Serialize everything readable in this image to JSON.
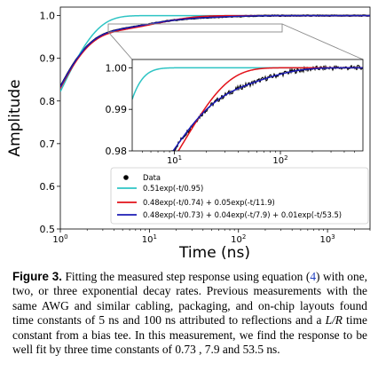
{
  "chart_data": {
    "type": "line",
    "xlabel": "Time (ns)",
    "ylabel": "Amplitude",
    "x_scale": "log",
    "y_scale": "linear",
    "xlim": [
      1,
      3000
    ],
    "ylim": [
      0.5,
      1.02
    ],
    "x_ticks": [
      "10^0",
      "10^1",
      "10^2",
      "10^3"
    ],
    "y_ticks": [
      "0.5",
      "0.6",
      "0.7",
      "0.8",
      "0.9",
      "1.0"
    ],
    "grid": false,
    "legend_position": "bottom-right",
    "series": [
      {
        "name": "Data",
        "kind": "points",
        "color": "#000000"
      },
      {
        "name": "0.51 exp(-t/0.95)",
        "kind": "line",
        "color": "#2ec4c4",
        "amplitudes": [
          0.51
        ],
        "taus": [
          0.95
        ]
      },
      {
        "name": "0.48 exp(-t/0.74) + 0.05 exp(-t/11.9)",
        "kind": "line",
        "color": "#e3121a",
        "amplitudes": [
          0.48,
          0.05
        ],
        "taus": [
          0.74,
          11.9
        ]
      },
      {
        "name": "0.48 exp(-t/0.73) + 0.04 exp(-t/7.9) + 0.01 exp(-t/53.5)",
        "kind": "line",
        "color": "#1b1bb5",
        "amplitudes": [
          0.48,
          0.04,
          0.01
        ],
        "taus": [
          0.73,
          7.9,
          53.5
        ]
      }
    ],
    "inset": {
      "xlim": [
        4,
        600
      ],
      "ylim": [
        0.98,
        1.002
      ],
      "x_scale": "log",
      "x_ticks": [
        "10^1",
        "10^2"
      ],
      "y_ticks": [
        "0.98",
        "0.99",
        "1.00"
      ],
      "zoom_region_x": [
        4,
        300
      ],
      "zoom_region_y": [
        0.98,
        1.0
      ]
    }
  },
  "legend": {
    "data": "Data",
    "fit1": "0.51exp(-t/0.95)",
    "fit2": "0.48exp(-t/0.74) + 0.05exp(-t/11.9)",
    "fit3": "0.48exp(-t/0.73) + 0.04exp(-t/7.9) + 0.01exp(-t/53.5)"
  },
  "axes": {
    "xlabel": "Time (ns)",
    "ylabel": "Amplitude",
    "y_ticks": [
      "0.5",
      "0.6",
      "0.7",
      "0.8",
      "0.9",
      "1.0"
    ],
    "inset_y_ticks": [
      "0.98",
      "0.99",
      "1.00"
    ],
    "x_tick_base": "10",
    "x_tick_exps": [
      "0",
      "1",
      "2",
      "3"
    ],
    "inset_x_tick_exps": [
      "1",
      "2"
    ]
  },
  "caption": {
    "lead": "Figure 3.",
    "part1": " Fitting the measured step response using equation (",
    "ref": "4",
    "part2": ") with one, two, or three exponential decay rates. Previous measurements with the same AWG and similar cabling, packaging, and on-chip layouts found time constants of 5 ns and 100 ns attributed to reflections and a ",
    "lr": "L/R",
    "part3": " time constant from a bias tee. In this measurement, we find the response to be well fit by three time constants of 0.73 , 7.9 and 53.5 ns."
  }
}
